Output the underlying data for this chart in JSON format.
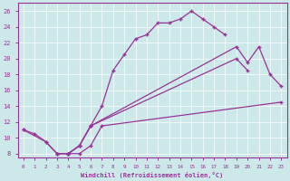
{
  "xlabel": "Windchill (Refroidissement éolien,°C)",
  "bg_color": "#cce8e8",
  "line_color": "#993399",
  "xlim": [
    -0.5,
    23.5
  ],
  "ylim": [
    7.5,
    27
  ],
  "xticks": [
    0,
    1,
    2,
    3,
    4,
    5,
    6,
    7,
    8,
    9,
    10,
    11,
    12,
    13,
    14,
    15,
    16,
    17,
    18,
    19,
    20,
    21,
    22,
    23
  ],
  "yticks": [
    8,
    10,
    12,
    14,
    16,
    18,
    20,
    22,
    24,
    26
  ],
  "series": [
    {
      "x": [
        0,
        1,
        2,
        3,
        4,
        5,
        6,
        7,
        8,
        9,
        10,
        11,
        12,
        13,
        14,
        15,
        16,
        17,
        18
      ],
      "y": [
        11,
        10.5,
        9.5,
        8,
        8,
        9,
        11.5,
        14,
        18.5,
        20.5,
        22.5,
        23,
        24.5,
        24.5,
        25,
        26,
        25,
        24,
        23
      ]
    },
    {
      "x": [
        0,
        2,
        3,
        4,
        5,
        6,
        19,
        20,
        21,
        22,
        23
      ],
      "y": [
        11,
        9.5,
        8,
        8,
        9,
        11.5,
        21.5,
        19.5,
        21.5,
        18,
        16.5
      ]
    },
    {
      "x": [
        3,
        4,
        5,
        6,
        19,
        20
      ],
      "y": [
        8,
        8,
        9,
        11.5,
        20,
        18.5
      ]
    },
    {
      "x": [
        4,
        5,
        6,
        7,
        23
      ],
      "y": [
        8,
        8,
        9,
        11.5,
        14.5
      ]
    }
  ]
}
